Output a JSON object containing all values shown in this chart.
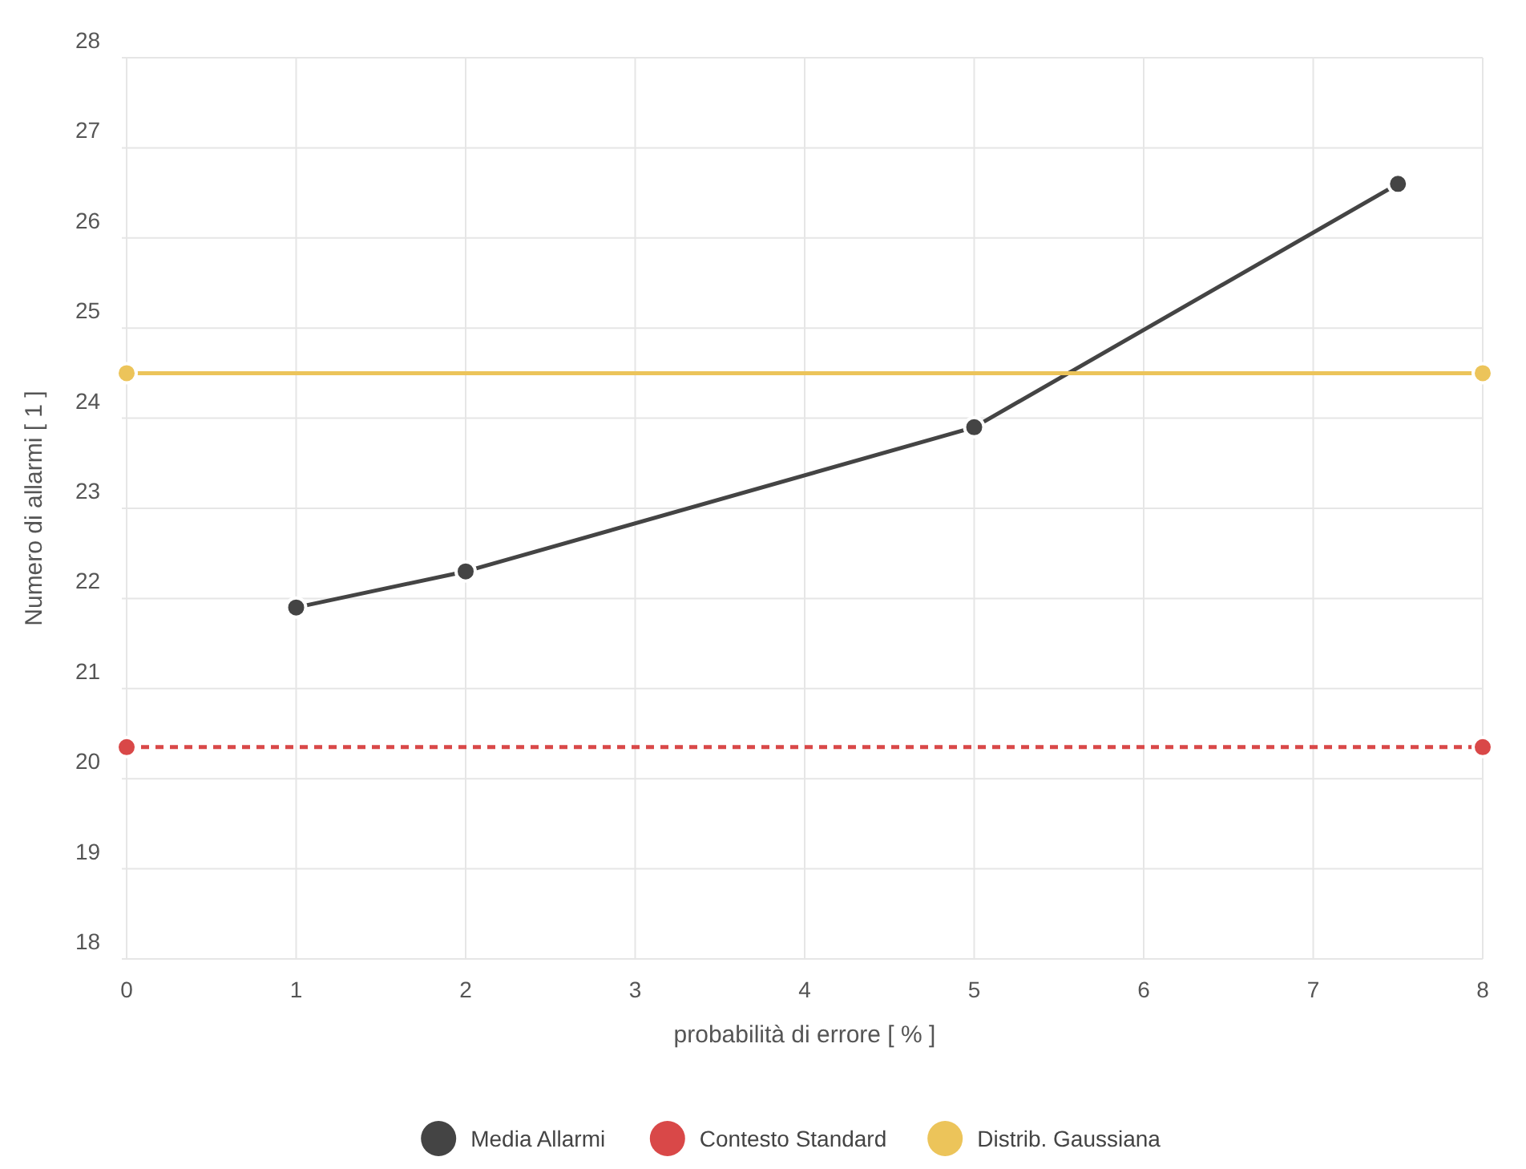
{
  "chart_data": {
    "type": "line",
    "xlabel": "probabilità di errore [ % ]",
    "ylabel": "Numero di allarmi [ 1 ]",
    "xlim": [
      0,
      8
    ],
    "xticks": [
      0,
      1,
      2,
      3,
      4,
      5,
      6,
      7,
      8
    ],
    "ylim": [
      18,
      28
    ],
    "yticks": [
      18,
      19,
      20,
      21,
      22,
      23,
      24,
      25,
      26,
      27,
      28
    ],
    "grid": true,
    "legend": "bottom",
    "marker": "circle",
    "series": [
      {
        "name": "Media Allarmi",
        "color": "#444444",
        "x": [
          1,
          2,
          5,
          7.5
        ],
        "values": [
          21.9,
          22.3,
          23.9,
          26.6
        ]
      },
      {
        "name": "Contesto Standard",
        "color": "#d94848",
        "x": [
          0,
          8
        ],
        "values": [
          20.35,
          20.35
        ],
        "line_style": "dashed"
      },
      {
        "name": "Distrib. Gaussiana",
        "color": "#ecc45a",
        "x": [
          0,
          8
        ],
        "values": [
          24.5,
          24.5
        ]
      }
    ]
  }
}
